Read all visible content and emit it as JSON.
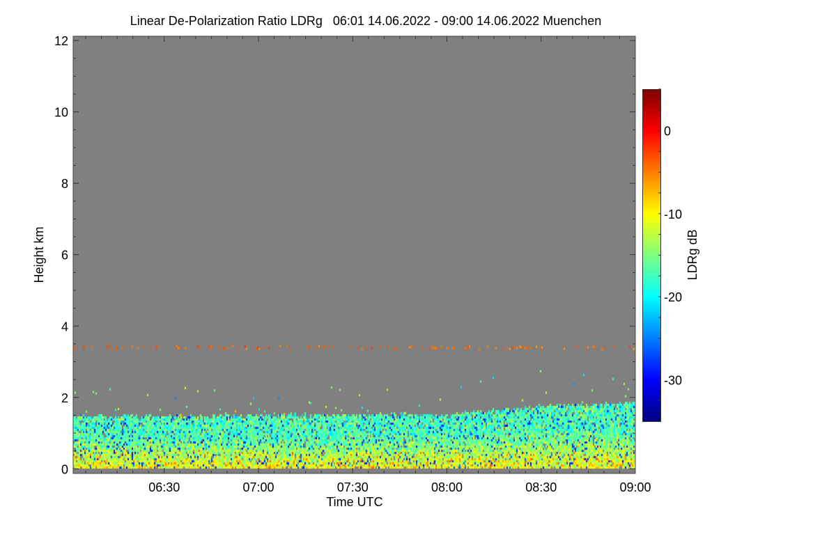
{
  "chart_data": {
    "type": "heatmap",
    "title": "Linear De-Polarization Ratio LDRg   06:01 14.06.2022 - 09:00 14.06.2022 Muenchen",
    "xlabel": "Time UTC",
    "ylabel": "Height km",
    "colorbar_label": "LDRg dB",
    "x_range_minutes_utc": [
      361,
      540
    ],
    "ylim": [
      -0.13,
      12.12
    ],
    "clim": [
      -35,
      5
    ],
    "colormap": "jet",
    "no_data_color": "#808080",
    "x_ticks": [
      {
        "minutes": 390,
        "label": "06:30"
      },
      {
        "minutes": 420,
        "label": "07:00"
      },
      {
        "minutes": 450,
        "label": "07:30"
      },
      {
        "minutes": 480,
        "label": "08:00"
      },
      {
        "minutes": 510,
        "label": "08:30"
      },
      {
        "minutes": 540,
        "label": "09:00"
      }
    ],
    "y_ticks": [
      {
        "value": 0,
        "label": "0"
      },
      {
        "value": 2,
        "label": "2"
      },
      {
        "value": 4,
        "label": "4"
      },
      {
        "value": 6,
        "label": "6"
      },
      {
        "value": 8,
        "label": "8"
      },
      {
        "value": 10,
        "label": "10"
      },
      {
        "value": 12,
        "label": "12"
      }
    ],
    "colorbar_ticks": [
      {
        "value": 0,
        "label": "0"
      },
      {
        "value": -10,
        "label": "-10"
      },
      {
        "value": -20,
        "label": "-20"
      },
      {
        "value": -30,
        "label": "-30"
      }
    ],
    "boundary_layer_top_km": [
      {
        "minutes": 361,
        "height": 1.5
      },
      {
        "minutes": 480,
        "height": 1.55
      },
      {
        "minutes": 505,
        "height": 1.75
      },
      {
        "minutes": 540,
        "height": 1.9
      }
    ],
    "boundary_layer_ldr_db": {
      "near_ground": -10,
      "upper": -17,
      "scatter_low": -28
    },
    "elevated_layer": {
      "height_km": 3.42,
      "ldr_db": -4
    }
  }
}
